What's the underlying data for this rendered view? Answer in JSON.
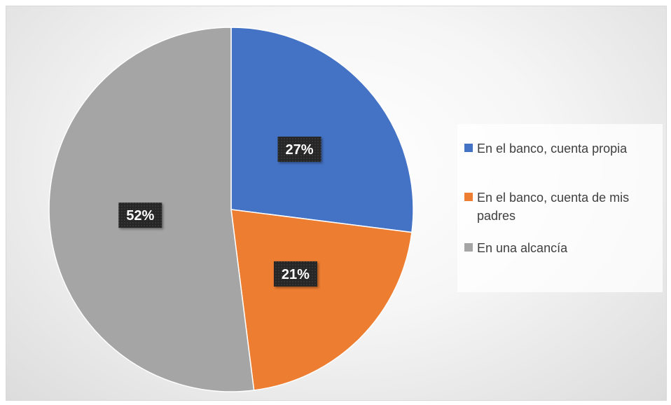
{
  "chart_data": {
    "type": "pie",
    "title": "",
    "slices": [
      {
        "label": "En el banco, cuenta propia",
        "value": 27,
        "display": "27%",
        "color": "#4472c4"
      },
      {
        "label": "En el banco, cuenta de mis padres",
        "value": 21,
        "display": "21%",
        "color": "#ed7d31"
      },
      {
        "label": "En una alcancía",
        "value": 52,
        "display": "52%",
        "color": "#a5a5a5"
      }
    ],
    "legend_position": "right",
    "data_label_style": "dark box, white bold text"
  }
}
